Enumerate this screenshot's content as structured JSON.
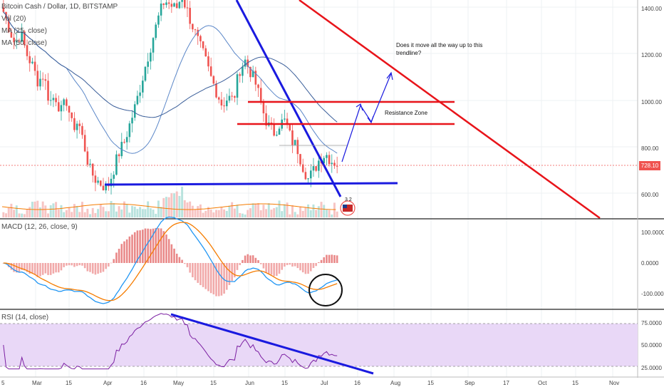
{
  "chart_header": {
    "title": "Bitcoin Cash / Dollar, 1D, BITSTAMP",
    "vol_label": "Vol (20)",
    "ma1_label": "MA (25, close)",
    "ma2_label": "MA (50, close)",
    "macd_label": "MACD (12, 26, close, 9)",
    "rsi_label": "RSI (14, close)"
  },
  "annotations": {
    "question": "Does it move all the way up to this trendline?",
    "question_line1": "Does it move all the way up to this",
    "question_line2": "trendline?",
    "resistance": "Resistance Zone"
  },
  "badge": "3 2",
  "last_price": "728.10",
  "colors": {
    "up": "#26a69a",
    "down": "#ef5350",
    "ma": "#5b87c8",
    "trend_blue": "#1a1adf",
    "trend_red": "#e8141a",
    "rsi_band": "#e9d8f7",
    "rsi_line": "#7b1fa2",
    "macd_line": "#2196f3",
    "signal_line": "#f57c00"
  },
  "chart_data": [
    {
      "type": "candlestick",
      "title": "Bitcoin Cash / Dollar, 1D, BITSTAMP",
      "y_axis": {
        "ticks": [
          "1400.00",
          "1200.00",
          "1000.00",
          "800.00",
          "600.00"
        ],
        "range": [
          540,
          1420
        ]
      },
      "x_axis": {
        "ticks": [
          "5",
          "Mar",
          "15",
          "Apr",
          "16",
          "May",
          "15",
          "Jun",
          "15",
          "Jul",
          "16",
          "Aug",
          "15",
          "Sep",
          "17",
          "Oct",
          "15",
          "Nov"
        ]
      },
      "price_path": [
        1380,
        1310,
        1240,
        1290,
        1200,
        1150,
        1080,
        1110,
        990,
        1020,
        950,
        1000,
        880,
        910,
        810,
        700,
        660,
        640,
        620,
        690,
        770,
        820,
        900,
        980,
        1080,
        1180,
        1270,
        1360,
        1430,
        1410,
        1390,
        1450,
        1380,
        1310,
        1240,
        1180,
        1100,
        1040,
        980,
        1010,
        1000,
        1130,
        1170,
        1120,
        1060,
        960,
        890,
        860,
        900,
        910,
        830,
        800,
        720,
        660,
        700,
        750,
        770,
        740,
        728
      ],
      "resistance_zone": [
        900,
        1000
      ],
      "support_level": 655,
      "current_price": 728.1
    },
    {
      "type": "line",
      "title": "MACD (12, 26, close, 9)",
      "y_axis": {
        "ticks": [
          "100.0000",
          "0.0000",
          "-100.0000"
        ]
      }
    },
    {
      "type": "line",
      "title": "RSI (14, close)",
      "y_axis": {
        "ticks": [
          "75.0000",
          "50.0000",
          "25.0000"
        ],
        "range": [
          22,
          88
        ]
      }
    }
  ]
}
